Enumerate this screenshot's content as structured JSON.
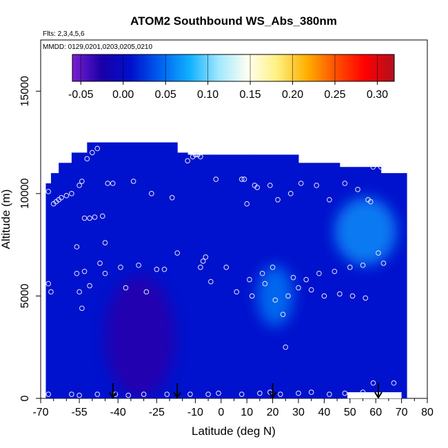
{
  "chart_data": {
    "type": "heatmap",
    "title": "ATOM2 Southbound WS_Abs_380nm",
    "annotations": [
      "Flts: 2,3,4,5,6",
      "MMDD: 0129,0201,0203,0205,0210"
    ],
    "xlabel": "Latitude (deg N)",
    "ylabel": "Altitude (m)",
    "xlim": [
      -70,
      80
    ],
    "ylim": [
      0,
      17500
    ],
    "xticks": [
      -70,
      -55,
      -40,
      -25,
      -10,
      0,
      10,
      20,
      30,
      40,
      50,
      60,
      70,
      80
    ],
    "xtick_minor": [
      -65,
      -60,
      -50,
      -45,
      -35,
      -30,
      -20,
      -15,
      -5,
      5,
      15,
      25,
      35,
      45,
      55,
      65,
      75
    ],
    "yticks": [
      0,
      5000,
      10000,
      15000
    ],
    "colorbar": {
      "range": [
        -0.06,
        0.32
      ],
      "ticks": [
        -0.05,
        0.0,
        0.05,
        0.1,
        0.15,
        0.2,
        0.25,
        0.3
      ],
      "tick_labels": [
        "-0.05",
        "0.00",
        "0.05",
        "0.10",
        "0.15",
        "0.20",
        "0.25",
        "0.30"
      ],
      "colors": [
        "#7a1fd0",
        "#1a00a8",
        "#0010cc",
        "#0060f0",
        "#10b0ff",
        "#a0e8ff",
        "#fffff0",
        "#fff080",
        "#ffb000",
        "#ff5000",
        "#ff0000",
        "#b01020"
      ]
    },
    "latitude_bands": [
      [
        -68,
        0,
        10500
      ],
      [
        -66,
        0,
        11000
      ],
      [
        -63,
        0,
        11500
      ],
      [
        -58,
        0,
        12000
      ],
      [
        -52,
        0,
        12500
      ],
      [
        -28,
        0,
        12500
      ],
      [
        -17,
        0,
        12000
      ],
      [
        -13,
        0,
        11900
      ],
      [
        -3,
        0,
        11900
      ],
      [
        12,
        0,
        11900
      ],
      [
        30,
        0,
        11500
      ],
      [
        46,
        0,
        11300
      ],
      [
        55,
        0,
        11300
      ],
      [
        62,
        0,
        11000
      ],
      [
        72,
        0,
        11000
      ]
    ],
    "features": [
      {
        "label": "tropical_mid_tropo",
        "lat": [
          14,
          28
        ],
        "alt": [
          3500,
          6500
        ],
        "value": 0.05
      },
      {
        "label": "north_upper_tropo",
        "lat": [
          44,
          68
        ],
        "alt": [
          6500,
          9800
        ],
        "value": 0.06
      },
      {
        "label": "south_low_dark",
        "lat": [
          -45,
          -18
        ],
        "alt": [
          0,
          6000
        ],
        "value": -0.03
      }
    ],
    "background_value": 0.01,
    "flight_points": [
      [
        -67,
        10100
      ],
      [
        -67,
        5600
      ],
      [
        -66,
        5200
      ],
      [
        -65,
        9500
      ],
      [
        -64,
        9600
      ],
      [
        -63,
        9700
      ],
      [
        -62,
        9800
      ],
      [
        -60,
        9900
      ],
      [
        -58,
        10000
      ],
      [
        -56,
        7400
      ],
      [
        -56,
        6100
      ],
      [
        -55,
        5200
      ],
      [
        -55,
        10400
      ],
      [
        -54,
        10600
      ],
      [
        -54,
        4400
      ],
      [
        -53,
        6200
      ],
      [
        -53,
        8800
      ],
      [
        -52,
        11700
      ],
      [
        -51,
        5500
      ],
      [
        -51,
        8800
      ],
      [
        -50,
        12000
      ],
      [
        -49,
        8850
      ],
      [
        -48,
        12200
      ],
      [
        -47,
        6600
      ],
      [
        -46,
        8900
      ],
      [
        -45,
        6100
      ],
      [
        -45,
        7600
      ],
      [
        -44,
        10500
      ],
      [
        -42,
        10500
      ],
      [
        -39,
        6400
      ],
      [
        -37,
        5400
      ],
      [
        -34,
        10600
      ],
      [
        -32,
        6500
      ],
      [
        -29,
        5200
      ],
      [
        -27,
        10000
      ],
      [
        -25,
        6300
      ],
      [
        -22,
        6300
      ],
      [
        -19,
        9800
      ],
      [
        -17,
        7100
      ],
      [
        -13,
        11600
      ],
      [
        -11,
        11800
      ],
      [
        -10,
        11900
      ],
      [
        -9,
        11900
      ],
      [
        -8,
        11800
      ],
      [
        -8,
        6400
      ],
      [
        -7,
        6700
      ],
      [
        -6,
        6900
      ],
      [
        -4,
        5700
      ],
      [
        -2,
        10700
      ],
      [
        2,
        6400
      ],
      [
        6,
        5200
      ],
      [
        8,
        10700
      ],
      [
        9,
        10700
      ],
      [
        10,
        9500
      ],
      [
        11,
        5800
      ],
      [
        12,
        5000
      ],
      [
        13,
        10400
      ],
      [
        14,
        10300
      ],
      [
        16,
        6100
      ],
      [
        17,
        5600
      ],
      [
        19,
        10400
      ],
      [
        20,
        6400
      ],
      [
        21,
        4800
      ],
      [
        22,
        9700
      ],
      [
        24,
        4100
      ],
      [
        25,
        2500
      ],
      [
        26,
        5000
      ],
      [
        27,
        10000
      ],
      [
        28,
        5900
      ],
      [
        30,
        5400
      ],
      [
        31,
        10500
      ],
      [
        33,
        5800
      ],
      [
        35,
        5300
      ],
      [
        37,
        10400
      ],
      [
        38,
        6100
      ],
      [
        40,
        5000
      ],
      [
        42,
        9700
      ],
      [
        44,
        6200
      ],
      [
        46,
        5100
      ],
      [
        48,
        10500
      ],
      [
        50,
        6400
      ],
      [
        51,
        5000
      ],
      [
        53,
        10200
      ],
      [
        55,
        6500
      ],
      [
        56,
        4900
      ],
      [
        57,
        9700
      ],
      [
        58,
        9600
      ],
      [
        59,
        11300
      ],
      [
        61,
        7100
      ],
      [
        62,
        11300
      ],
      [
        63,
        6600
      ],
      [
        -67,
        200
      ],
      [
        -58,
        200
      ],
      [
        -55,
        150
      ],
      [
        -48,
        200
      ],
      [
        -41,
        200
      ],
      [
        -36,
        150
      ],
      [
        -30,
        200
      ],
      [
        -21,
        200
      ],
      [
        -12,
        200
      ],
      [
        -5,
        200
      ],
      [
        -1,
        250
      ],
      [
        8,
        200
      ],
      [
        15,
        250
      ],
      [
        19,
        300
      ],
      [
        23,
        200
      ],
      [
        30,
        250
      ],
      [
        35,
        300
      ],
      [
        42,
        200
      ],
      [
        48,
        250
      ],
      [
        55,
        300
      ],
      [
        59,
        750
      ],
      [
        67,
        750
      ]
    ],
    "arrows_lat": [
      -42,
      -17,
      20,
      61
    ]
  }
}
